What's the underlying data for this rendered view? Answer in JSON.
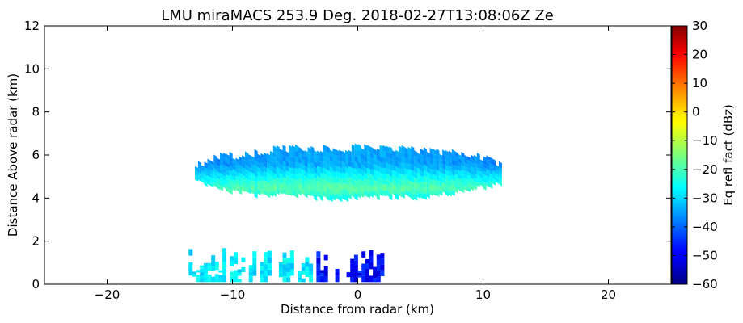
{
  "chart_data": {
    "type": "heatmap",
    "title": "LMU miraMACS 253.9 Deg. 2018-02-27T13:08:06Z  Ze",
    "xlabel": "Distance from radar (km)",
    "ylabel": "Distance Above radar  (km)",
    "xlim": [
      -25,
      25
    ],
    "ylim": [
      0,
      12
    ],
    "xticks": [
      -20,
      -10,
      0,
      10,
      20
    ],
    "yticks": [
      0,
      2,
      4,
      6,
      8,
      10,
      12
    ],
    "grid": false,
    "colorbar": {
      "label": "Eq refl fact (dBz)",
      "min": -60,
      "max": 30,
      "ticks": [
        30,
        20,
        10,
        0,
        -10,
        -20,
        -30,
        -40,
        -50,
        -60
      ],
      "colormap": "jet"
    },
    "features": [
      {
        "name": "upper cloud layer",
        "x_range_km": [
          -13,
          11.5
        ],
        "base_km": 3.9,
        "top_km": 6.4,
        "typical_dbz": -27,
        "core_dbz": -18,
        "edge_dbz": -34,
        "core_height_km": 4.5
      },
      {
        "name": "low-level echoes",
        "x_range_km": [
          -13.5,
          2
        ],
        "base_km": 0.1,
        "top_km": 1.7,
        "typical_dbz": -28,
        "near_radar_dbz": -48
      }
    ]
  }
}
